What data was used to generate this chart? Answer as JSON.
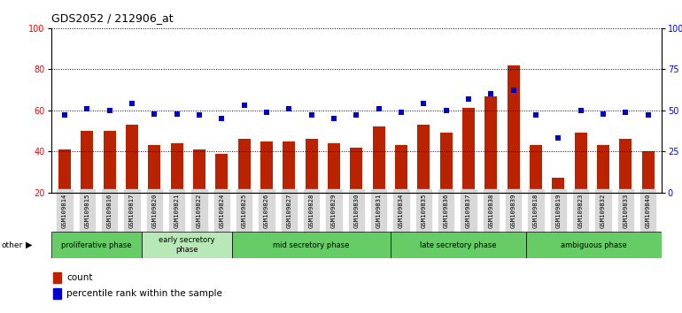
{
  "title": "GDS2052 / 212906_at",
  "samples": [
    "GSM109814",
    "GSM109815",
    "GSM109816",
    "GSM109817",
    "GSM109820",
    "GSM109821",
    "GSM109822",
    "GSM109824",
    "GSM109825",
    "GSM109826",
    "GSM109827",
    "GSM109828",
    "GSM109829",
    "GSM109830",
    "GSM109831",
    "GSM109834",
    "GSM109835",
    "GSM109836",
    "GSM109837",
    "GSM109838",
    "GSM109839",
    "GSM109818",
    "GSM109819",
    "GSM109823",
    "GSM109832",
    "GSM109833",
    "GSM109840"
  ],
  "counts": [
    41,
    50,
    50,
    53,
    43,
    44,
    41,
    39,
    46,
    45,
    45,
    46,
    44,
    42,
    52,
    43,
    53,
    49,
    61,
    67,
    82,
    43,
    27,
    49,
    43,
    46,
    40
  ],
  "percentiles": [
    47,
    51,
    50,
    54,
    48,
    48,
    47,
    45,
    53,
    49,
    51,
    47,
    45,
    47,
    51,
    49,
    54,
    50,
    57,
    60,
    62,
    47,
    33,
    50,
    48,
    49,
    47
  ],
  "phases": [
    {
      "label": "proliferative phase",
      "start": 0,
      "end": 4,
      "color": "#66cc66"
    },
    {
      "label": "early secretory\nphase",
      "start": 4,
      "end": 8,
      "color": "#b8e8b8"
    },
    {
      "label": "mid secretory phase",
      "start": 8,
      "end": 15,
      "color": "#66cc66"
    },
    {
      "label": "late secretory phase",
      "start": 15,
      "end": 21,
      "color": "#66cc66"
    },
    {
      "label": "ambiguous phase",
      "start": 21,
      "end": 27,
      "color": "#66cc66"
    }
  ],
  "bar_color": "#bb2200",
  "dot_color": "#0000cc",
  "left_ylim": [
    20,
    100
  ],
  "right_ylim": [
    0,
    100
  ],
  "left_ticks": [
    20,
    40,
    60,
    80,
    100
  ],
  "right_ticks": [
    0,
    25,
    50,
    75,
    100
  ],
  "bg_color": "#ffffff",
  "tick_bg_color": "#d8d8d8"
}
